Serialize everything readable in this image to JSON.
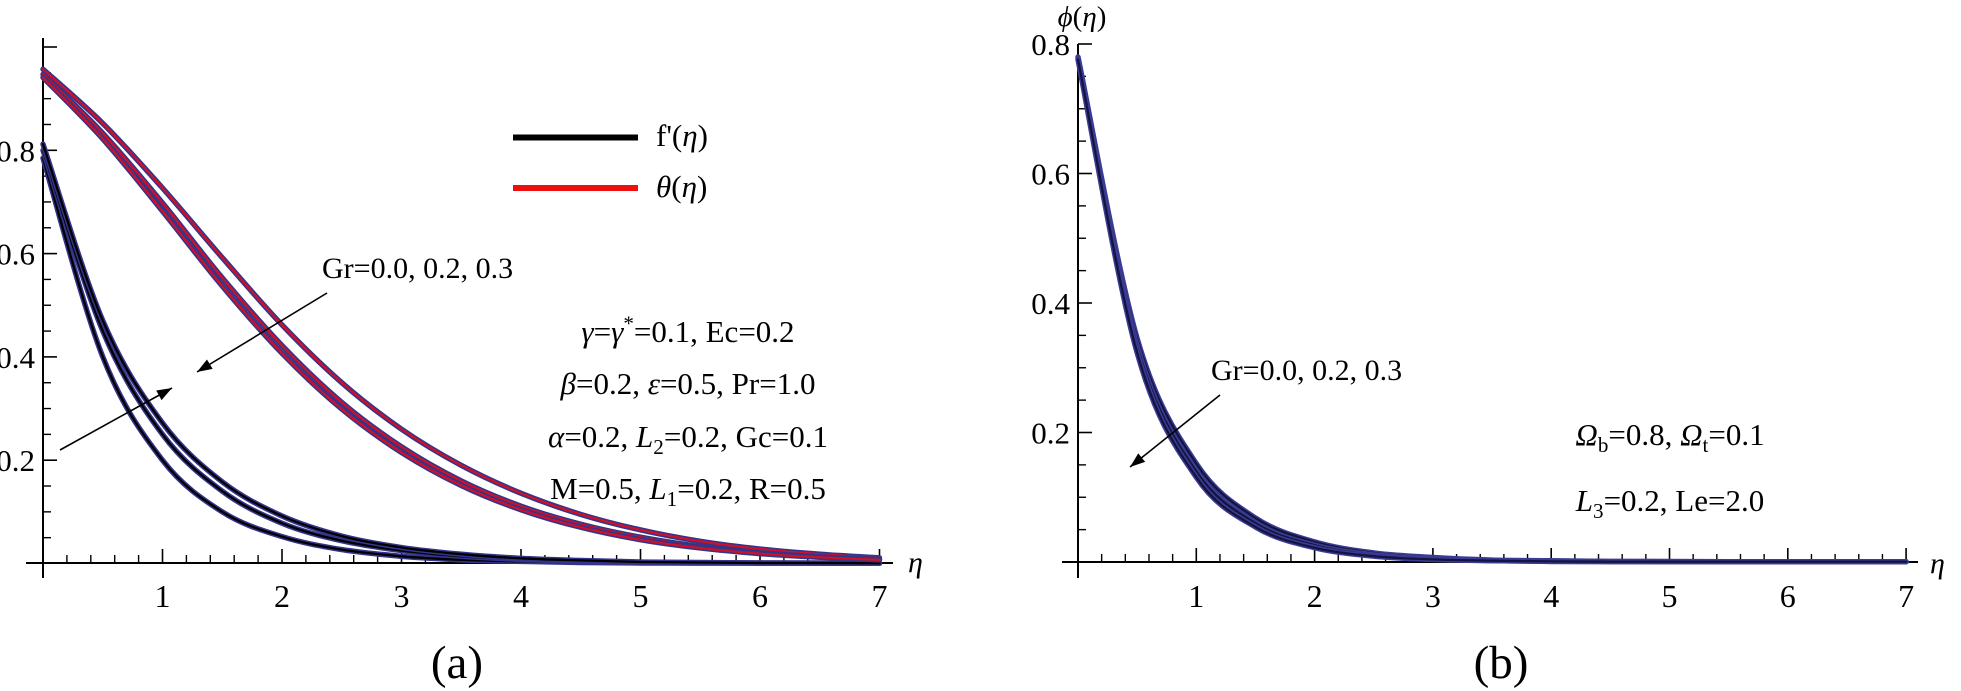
{
  "chart_data": [
    {
      "id": "a",
      "type": "line",
      "caption": "(a)",
      "x_axis_label": "_η_",
      "y_axis_label": "",
      "x_range": [
        0,
        7
      ],
      "y_range": [
        0,
        1
      ],
      "grid": false,
      "x_tick_labels": [
        "1",
        "2",
        "3",
        "4",
        "5",
        "6",
        "7"
      ],
      "y_tick_labels": [
        "0.2",
        "0.4",
        "0.6",
        "0.8"
      ],
      "x_minor_step": 0.2,
      "y_minor_step": 0.05,
      "legend_position": "upper-right-inside",
      "legend": [
        {
          "label": "f'(_η_)",
          "color": "#000000"
        },
        {
          "label": "_θ_(_η_)",
          "color": "#ee0f0f"
        }
      ],
      "annotation_text": "Gr=0.0, 0.2, 0.3",
      "param_lines": [
        "_γ_=_γ_^*^=0.1, Ec=0.2",
        "_β_=0.2, _ε_=0.5, Pr=1.0",
        "_α_=0.2, _L_~2~=0.2, Gc=0.1",
        "M=0.5, _L_~1~=0.2, R=0.5"
      ],
      "x_start": 0,
      "x_step": 0.5,
      "series": [
        {
          "name": "f'(eta), Gr=0.0",
          "group": "f-prime",
          "Gr": 0.0,
          "edge": "#34348a",
          "core": "#000000",
          "values": [
            0.785,
            0.4,
            0.2,
            0.1,
            0.052,
            0.027,
            0.014,
            0.007,
            0.004,
            0.002,
            0.001,
            0.001,
            0.0005,
            0.0005,
            0.0005
          ]
        },
        {
          "name": "f'(eta), Gr=0.2",
          "group": "f-prime",
          "Gr": 0.2,
          "edge": "#34348a",
          "core": "#000000",
          "values": [
            0.8,
            0.45,
            0.25,
            0.14,
            0.078,
            0.044,
            0.025,
            0.014,
            0.008,
            0.004,
            0.002,
            0.001,
            0.001,
            0.0005,
            0.0005
          ]
        },
        {
          "name": "f'(eta), Gr=0.3",
          "group": "f-prime",
          "Gr": 0.3,
          "edge": "#34348a",
          "core": "#000000",
          "values": [
            0.812,
            0.47,
            0.272,
            0.158,
            0.092,
            0.053,
            0.031,
            0.018,
            0.01,
            0.006,
            0.003,
            0.002,
            0.001,
            0.001,
            0.0005
          ]
        },
        {
          "name": "theta(eta), Gr=0.0",
          "group": "theta",
          "Gr": 0.0,
          "edge": "#34348a",
          "core": "#cc1128",
          "values": [
            0.957,
            0.852,
            0.727,
            0.592,
            0.462,
            0.35,
            0.26,
            0.19,
            0.136,
            0.095,
            0.065,
            0.043,
            0.028,
            0.018,
            0.011
          ]
        },
        {
          "name": "theta(eta), Gr=0.2",
          "group": "theta",
          "Gr": 0.2,
          "edge": "#34348a",
          "core": "#cc1128",
          "values": [
            0.947,
            0.833,
            0.698,
            0.553,
            0.422,
            0.312,
            0.226,
            0.16,
            0.111,
            0.076,
            0.051,
            0.033,
            0.021,
            0.013,
            0.008
          ]
        },
        {
          "name": "theta(eta), Gr=0.3",
          "group": "theta",
          "Gr": 0.3,
          "edge": "#34348a",
          "core": "#cc1128",
          "values": [
            0.941,
            0.822,
            0.682,
            0.537,
            0.407,
            0.299,
            0.215,
            0.151,
            0.104,
            0.07,
            0.046,
            0.03,
            0.019,
            0.012,
            0.007
          ]
        }
      ]
    },
    {
      "id": "b",
      "type": "line",
      "caption": "(b)",
      "x_axis_label": "_η_",
      "y_axis_label": "_ϕ_(_η_)",
      "x_range": [
        0,
        7
      ],
      "y_range": [
        0,
        0.8
      ],
      "grid": false,
      "x_tick_labels": [
        "1",
        "2",
        "3",
        "4",
        "5",
        "6",
        "7"
      ],
      "y_tick_labels": [
        "0.2",
        "0.4",
        "0.6",
        "0.8"
      ],
      "x_minor_step": 0.2,
      "y_minor_step": 0.05,
      "legend": [],
      "annotation_text": "Gr=0.0, 0.2, 0.3",
      "param_lines": [
        "_Ω_~b~=0.8, _Ω_~t~=0.1",
        "_L_~3~=0.2, Le=2.0"
      ],
      "x_start": 0,
      "x_step": 0.5,
      "series": [
        {
          "name": "phi(eta), Gr=0.0",
          "group": "phi",
          "Gr": 0.0,
          "edge": "#3b3b94",
          "core": "#141440",
          "values": [
            0.78,
            0.345,
            0.152,
            0.068,
            0.031,
            0.014,
            0.007,
            0.003,
            0.002,
            0.001,
            0.001,
            0.0005,
            0.0005,
            0.0005,
            0.0005
          ]
        },
        {
          "name": "phi(eta), Gr=0.2",
          "group": "phi",
          "Gr": 0.2,
          "edge": "#3b3b94",
          "core": "#141440",
          "values": [
            0.778,
            0.333,
            0.14,
            0.06,
            0.026,
            0.011,
            0.005,
            0.002,
            0.001,
            0.001,
            0.0005,
            0.0005,
            0.0005,
            0.0005,
            0.0005
          ]
        },
        {
          "name": "phi(eta), Gr=0.3",
          "group": "phi",
          "Gr": 0.3,
          "edge": "#3b3b94",
          "core": "#141440",
          "values": [
            0.776,
            0.323,
            0.131,
            0.054,
            0.022,
            0.009,
            0.004,
            0.002,
            0.001,
            0.0005,
            0.0005,
            0.0005,
            0.0005,
            0.0005,
            0.0005
          ]
        }
      ]
    }
  ]
}
